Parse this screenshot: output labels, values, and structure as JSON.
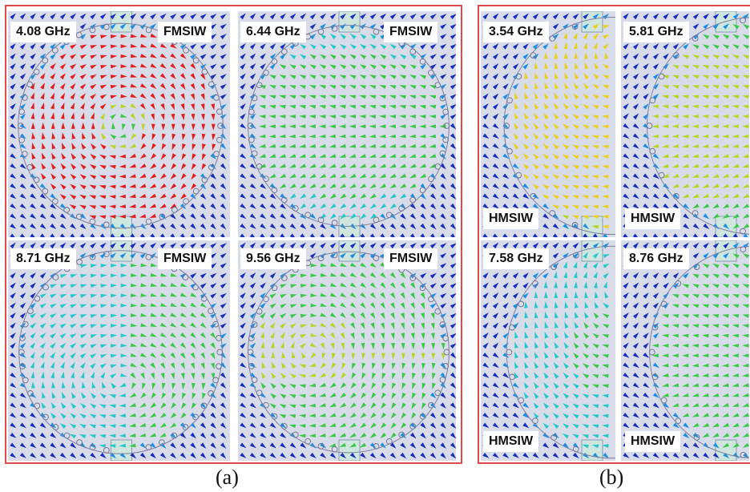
{
  "figure": {
    "caption_a": "(a)",
    "caption_b": "(b)",
    "panels": [
      {
        "group": "a",
        "freq": "4.08 GHz",
        "type": "FMSIW",
        "field": "a1"
      },
      {
        "group": "a",
        "freq": "6.44 GHz",
        "type": "FMSIW",
        "field": "a2"
      },
      {
        "group": "a",
        "freq": "8.71 GHz",
        "type": "FMSIW",
        "field": "a3"
      },
      {
        "group": "a",
        "freq": "9.56 GHz",
        "type": "FMSIW",
        "field": "a4"
      },
      {
        "group": "b",
        "freq": "3.54 GHz",
        "type": "HMSIW",
        "field": "b1"
      },
      {
        "group": "b",
        "freq": "5.81 GHz",
        "type": "HMSIW",
        "field": "b2"
      },
      {
        "group": "b",
        "freq": "7.58 GHz",
        "type": "HMSIW",
        "field": "b3"
      },
      {
        "group": "b",
        "freq": "8.76 GHz",
        "type": "HMSIW",
        "field": "b4"
      }
    ],
    "colors": {
      "border": "#e04a4a",
      "background": "#d8dbe8",
      "arrow_scale": [
        "#1a2fb8",
        "#1e8fe0",
        "#28c8c8",
        "#3cc84a",
        "#b8d428",
        "#e8d020",
        "#f09020",
        "#e02020"
      ]
    }
  }
}
